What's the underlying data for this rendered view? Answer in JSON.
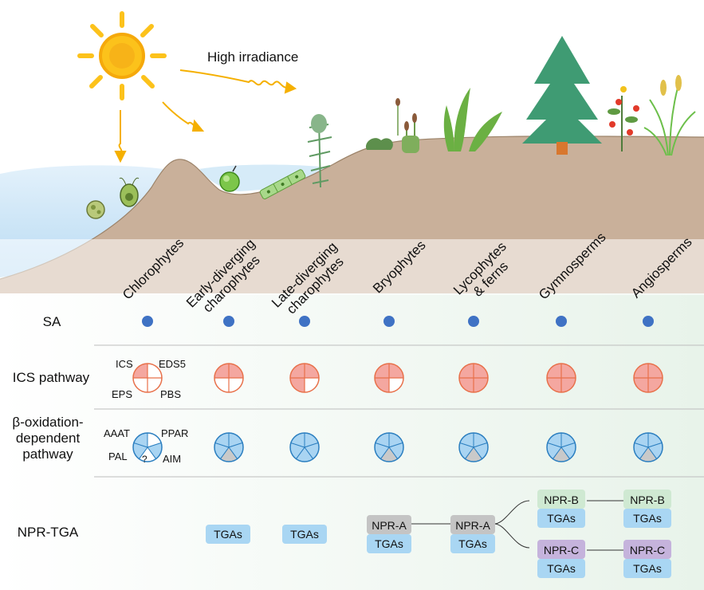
{
  "sun_label": "High irradiance",
  "taxa": [
    {
      "line1": "Chlorophytes",
      "line2": ""
    },
    {
      "line1": "Early-diverging",
      "line2": "charophytes"
    },
    {
      "line1": "Late-diverging",
      "line2": "charophytes"
    },
    {
      "line1": "Bryophytes",
      "line2": ""
    },
    {
      "line1": "Lycophytes",
      "line2": "& ferns"
    },
    {
      "line1": "Gymnosperms",
      "line2": ""
    },
    {
      "line1": "Angiosperms",
      "line2": ""
    }
  ],
  "rows": {
    "sa": "SA",
    "ics": "ICS pathway",
    "beta_line1": "β-oxidation-",
    "beta_line2": "dependent",
    "beta_line3": "pathway",
    "npr": "NPR-TGA"
  },
  "ics_enzymes": {
    "top_left": "ICS",
    "top_right": "EDS5",
    "bottom_left": "EPS",
    "bottom_right": "PBS"
  },
  "beta_enzymes": {
    "top_left": "AAAT",
    "top_right": "PPAR",
    "bottom_left": "PAL",
    "bottom_right": "AIM",
    "unknown": "?"
  },
  "ics_filled_quadrants": [
    1,
    2,
    3,
    3,
    4,
    4,
    4
  ],
  "beta_pie_style": [
    "partial",
    "full-grey",
    "full",
    "full-grey",
    "full-grey",
    "full-grey",
    "full-grey"
  ],
  "npr": {
    "tga": "TGAs",
    "npr_a": "NPR-A",
    "npr_b": "NPR-B",
    "npr_c": "NPR-C"
  },
  "colors": {
    "water": "#cfe6f7",
    "land": "#c7ad92",
    "sa_dot": "#3f72c4",
    "ics_fill": "#f4a7a0",
    "ics_stroke": "#e8704a",
    "beta_fill": "#a9d4f2",
    "beta_stroke": "#2c7fc0",
    "beta_grey": "#c9c9c9",
    "tga_box": "#a9d6f3",
    "npr_a_box": "#c4c4c4",
    "npr_b_box": "#cfe9d2",
    "npr_c_box": "#c5b3dc",
    "table_bg": "#eef6ef",
    "sun": "#f7b318"
  }
}
